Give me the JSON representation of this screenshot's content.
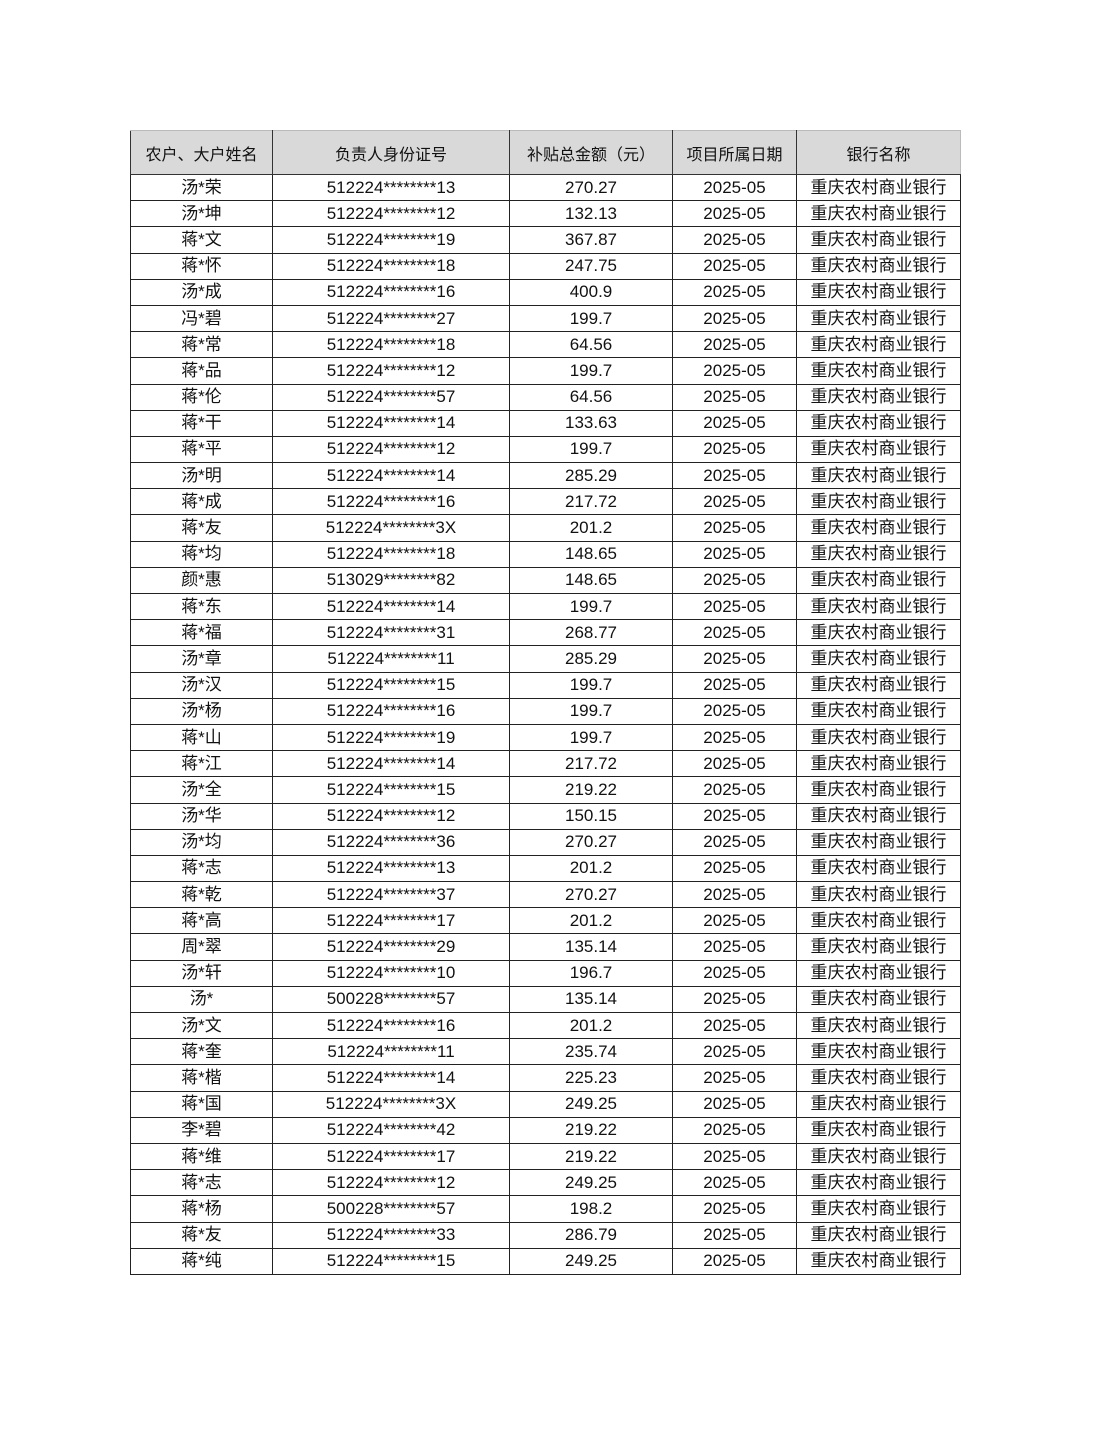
{
  "table": {
    "headers": [
      "农户、大户姓名",
      "负责人身份证号",
      "补贴总金额（元）",
      "项目所属日期",
      "银行名称"
    ],
    "rows": [
      [
        "汤*荣",
        "512224********13",
        "270.27",
        "2025-05",
        "重庆农村商业银行"
      ],
      [
        "汤*坤",
        "512224********12",
        "132.13",
        "2025-05",
        "重庆农村商业银行"
      ],
      [
        "蒋*文",
        "512224********19",
        "367.87",
        "2025-05",
        "重庆农村商业银行"
      ],
      [
        "蒋*怀",
        "512224********18",
        "247.75",
        "2025-05",
        "重庆农村商业银行"
      ],
      [
        "汤*成",
        "512224********16",
        "400.9",
        "2025-05",
        "重庆农村商业银行"
      ],
      [
        "冯*碧",
        "512224********27",
        "199.7",
        "2025-05",
        "重庆农村商业银行"
      ],
      [
        "蒋*常",
        "512224********18",
        "64.56",
        "2025-05",
        "重庆农村商业银行"
      ],
      [
        "蒋*品",
        "512224********12",
        "199.7",
        "2025-05",
        "重庆农村商业银行"
      ],
      [
        "蒋*伦",
        "512224********57",
        "64.56",
        "2025-05",
        "重庆农村商业银行"
      ],
      [
        "蒋*干",
        "512224********14",
        "133.63",
        "2025-05",
        "重庆农村商业银行"
      ],
      [
        "蒋*平",
        "512224********12",
        "199.7",
        "2025-05",
        "重庆农村商业银行"
      ],
      [
        "汤*明",
        "512224********14",
        "285.29",
        "2025-05",
        "重庆农村商业银行"
      ],
      [
        "蒋*成",
        "512224********16",
        "217.72",
        "2025-05",
        "重庆农村商业银行"
      ],
      [
        "蒋*友",
        "512224********3X",
        "201.2",
        "2025-05",
        "重庆农村商业银行"
      ],
      [
        "蒋*均",
        "512224********18",
        "148.65",
        "2025-05",
        "重庆农村商业银行"
      ],
      [
        "颜*惠",
        "513029********82",
        "148.65",
        "2025-05",
        "重庆农村商业银行"
      ],
      [
        "蒋*东",
        "512224********14",
        "199.7",
        "2025-05",
        "重庆农村商业银行"
      ],
      [
        "蒋*福",
        "512224********31",
        "268.77",
        "2025-05",
        "重庆农村商业银行"
      ],
      [
        "汤*章",
        "512224********11",
        "285.29",
        "2025-05",
        "重庆农村商业银行"
      ],
      [
        "汤*汉",
        "512224********15",
        "199.7",
        "2025-05",
        "重庆农村商业银行"
      ],
      [
        "汤*杨",
        "512224********16",
        "199.7",
        "2025-05",
        "重庆农村商业银行"
      ],
      [
        "蒋*山",
        "512224********19",
        "199.7",
        "2025-05",
        "重庆农村商业银行"
      ],
      [
        "蒋*江",
        "512224********14",
        "217.72",
        "2025-05",
        "重庆农村商业银行"
      ],
      [
        "汤*全",
        "512224********15",
        "219.22",
        "2025-05",
        "重庆农村商业银行"
      ],
      [
        "汤*华",
        "512224********12",
        "150.15",
        "2025-05",
        "重庆农村商业银行"
      ],
      [
        "汤*均",
        "512224********36",
        "270.27",
        "2025-05",
        "重庆农村商业银行"
      ],
      [
        "蒋*志",
        "512224********13",
        "201.2",
        "2025-05",
        "重庆农村商业银行"
      ],
      [
        "蒋*乾",
        "512224********37",
        "270.27",
        "2025-05",
        "重庆农村商业银行"
      ],
      [
        "蒋*高",
        "512224********17",
        "201.2",
        "2025-05",
        "重庆农村商业银行"
      ],
      [
        "周*翠",
        "512224********29",
        "135.14",
        "2025-05",
        "重庆农村商业银行"
      ],
      [
        "汤*轩",
        "512224********10",
        "196.7",
        "2025-05",
        "重庆农村商业银行"
      ],
      [
        "汤*",
        "500228********57",
        "135.14",
        "2025-05",
        "重庆农村商业银行"
      ],
      [
        "汤*文",
        "512224********16",
        "201.2",
        "2025-05",
        "重庆农村商业银行"
      ],
      [
        "蒋*奎",
        "512224********11",
        "235.74",
        "2025-05",
        "重庆农村商业银行"
      ],
      [
        "蒋*楷",
        "512224********14",
        "225.23",
        "2025-05",
        "重庆农村商业银行"
      ],
      [
        "蒋*国",
        "512224********3X",
        "249.25",
        "2025-05",
        "重庆农村商业银行"
      ],
      [
        "李*碧",
        "512224********42",
        "219.22",
        "2025-05",
        "重庆农村商业银行"
      ],
      [
        "蒋*维",
        "512224********17",
        "219.22",
        "2025-05",
        "重庆农村商业银行"
      ],
      [
        "蒋*志",
        "512224********12",
        "249.25",
        "2025-05",
        "重庆农村商业银行"
      ],
      [
        "蒋*杨",
        "500228********57",
        "198.2",
        "2025-05",
        "重庆农村商业银行"
      ],
      [
        "蒋*友",
        "512224********33",
        "286.79",
        "2025-05",
        "重庆农村商业银行"
      ],
      [
        "蒋*纯",
        "512224********15",
        "249.25",
        "2025-05",
        "重庆农村商业银行"
      ]
    ]
  }
}
